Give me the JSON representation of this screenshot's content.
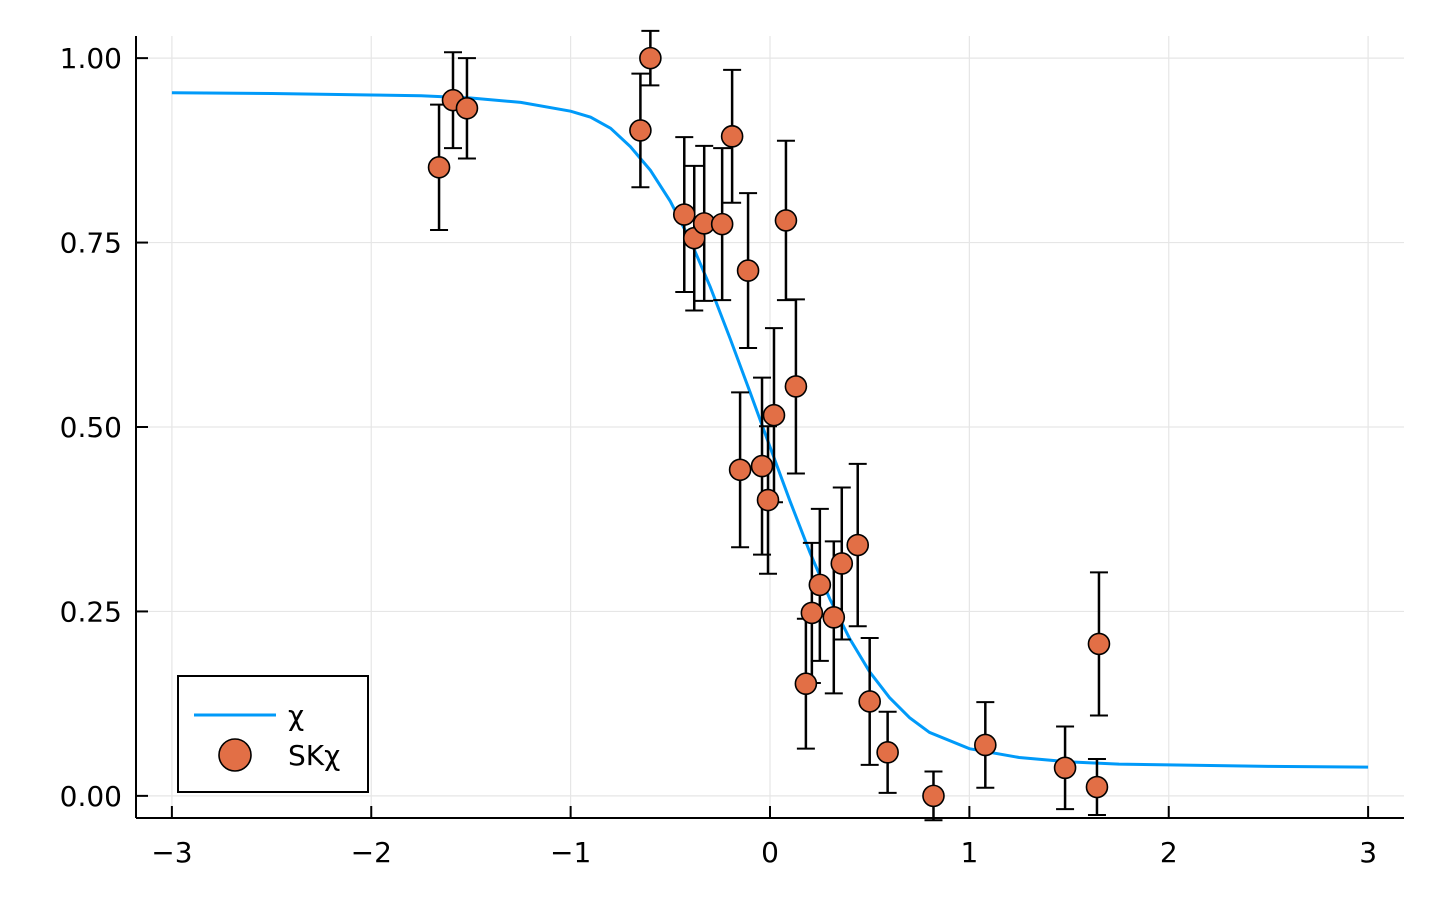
{
  "chart_data": {
    "type": "scatter",
    "title": "",
    "xlabel": "",
    "ylabel": "",
    "xlim": [
      -3.18,
      3.18
    ],
    "ylim": [
      -0.03,
      1.03
    ],
    "xticks": [
      -3,
      -2,
      -1,
      0,
      1,
      2,
      3
    ],
    "xtick_labels": [
      "−3",
      "−2",
      "−1",
      "0",
      "1",
      "2",
      "3"
    ],
    "yticks": [
      0,
      0.25,
      0.5,
      0.75,
      1.0
    ],
    "ytick_labels": [
      "0.00",
      "0.25",
      "0.50",
      "0.75",
      "1.00"
    ],
    "grid": true,
    "legend_position": "bottom-left",
    "series": [
      {
        "name": "χ",
        "kind": "line",
        "color": "#009af9",
        "x": [
          -3.0,
          -2.5,
          -2.0,
          -1.75,
          -1.5,
          -1.25,
          -1.0,
          -0.9,
          -0.8,
          -0.7,
          -0.6,
          -0.5,
          -0.4,
          -0.3,
          -0.2,
          -0.1,
          0.0,
          0.1,
          0.2,
          0.3,
          0.4,
          0.5,
          0.6,
          0.7,
          0.8,
          1.0,
          1.25,
          1.5,
          1.75,
          2.0,
          2.5,
          3.0
        ],
        "y": [
          0.953,
          0.952,
          0.95,
          0.949,
          0.946,
          0.94,
          0.928,
          0.92,
          0.905,
          0.88,
          0.848,
          0.806,
          0.753,
          0.69,
          0.62,
          0.547,
          0.473,
          0.4,
          0.33,
          0.267,
          0.213,
          0.168,
          0.133,
          0.106,
          0.086,
          0.064,
          0.052,
          0.046,
          0.043,
          0.042,
          0.04,
          0.039
        ]
      },
      {
        "name": "SKχ",
        "kind": "scatter",
        "color": "#e26f46",
        "points": [
          {
            "x": -1.66,
            "y": 0.852,
            "err": 0.085
          },
          {
            "x": -1.59,
            "y": 0.943,
            "err": 0.065
          },
          {
            "x": -1.52,
            "y": 0.932,
            "err": 0.068
          },
          {
            "x": -0.65,
            "y": 0.902,
            "err": 0.077
          },
          {
            "x": -0.6,
            "y": 1.0,
            "err": 0.037
          },
          {
            "x": -0.43,
            "y": 0.788,
            "err": 0.105
          },
          {
            "x": -0.38,
            "y": 0.756,
            "err": 0.098
          },
          {
            "x": -0.33,
            "y": 0.776,
            "err": 0.105
          },
          {
            "x": -0.24,
            "y": 0.775,
            "err": 0.103
          },
          {
            "x": -0.19,
            "y": 0.894,
            "err": 0.09
          },
          {
            "x": -0.15,
            "y": 0.442,
            "err": 0.105
          },
          {
            "x": -0.11,
            "y": 0.712,
            "err": 0.105
          },
          {
            "x": -0.04,
            "y": 0.447,
            "err": 0.12
          },
          {
            "x": -0.01,
            "y": 0.401,
            "err": 0.1
          },
          {
            "x": 0.02,
            "y": 0.516,
            "err": 0.118
          },
          {
            "x": 0.08,
            "y": 0.78,
            "err": 0.108
          },
          {
            "x": 0.13,
            "y": 0.555,
            "err": 0.118
          },
          {
            "x": 0.18,
            "y": 0.152,
            "err": 0.088
          },
          {
            "x": 0.21,
            "y": 0.248,
            "err": 0.095
          },
          {
            "x": 0.25,
            "y": 0.286,
            "err": 0.103
          },
          {
            "x": 0.32,
            "y": 0.242,
            "err": 0.103
          },
          {
            "x": 0.36,
            "y": 0.315,
            "err": 0.103
          },
          {
            "x": 0.44,
            "y": 0.34,
            "err": 0.11
          },
          {
            "x": 0.5,
            "y": 0.128,
            "err": 0.086
          },
          {
            "x": 0.59,
            "y": 0.059,
            "err": 0.055
          },
          {
            "x": 0.82,
            "y": 0.0,
            "err": 0.033
          },
          {
            "x": 1.08,
            "y": 0.069,
            "err": 0.058
          },
          {
            "x": 1.48,
            "y": 0.038,
            "err": 0.056
          },
          {
            "x": 1.64,
            "y": 0.012,
            "err": 0.038
          },
          {
            "x": 1.65,
            "y": 0.206,
            "err": 0.097
          }
        ]
      }
    ]
  }
}
